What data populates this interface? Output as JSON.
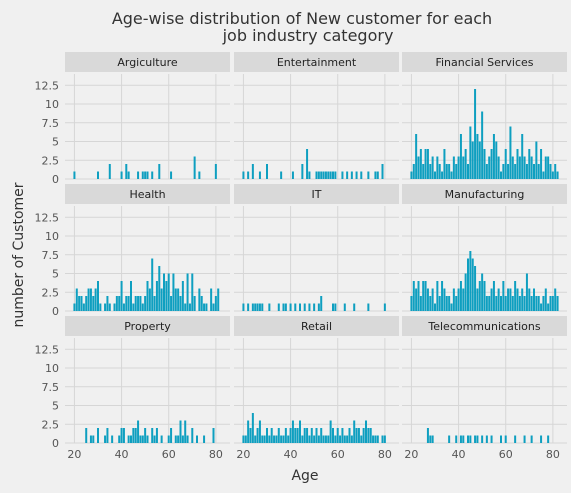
{
  "chart_data": {
    "type": "bar",
    "title_line1": "Age-wise distribution of New customer  for each",
    "title_line2": "job industry category",
    "xlabel": "Age",
    "ylabel": "number of Customer",
    "xlim": [
      16,
      86
    ],
    "ylim": [
      0,
      14
    ],
    "xticks": [
      20,
      40,
      60,
      80
    ],
    "yticks": [
      0,
      2.5,
      5,
      7.5,
      10,
      12.5
    ],
    "xtick_labels": [
      "20",
      "40",
      "60",
      "80"
    ],
    "ytick_labels": [
      "0",
      "2.5",
      "5",
      "7.5",
      "10",
      "12.5"
    ],
    "bar_color": "#0e9fc0",
    "grid": true,
    "panels": [
      {
        "name": "Argiculture",
        "x": [
          20,
          30,
          35,
          40,
          42,
          43,
          47,
          49,
          50,
          51,
          53,
          56,
          61,
          71,
          73,
          80
        ],
        "values": [
          1,
          1,
          2,
          1,
          2,
          1,
          1,
          1,
          1,
          1,
          1,
          2,
          1,
          3,
          1,
          2
        ]
      },
      {
        "name": "Entertainment",
        "x": [
          20,
          22,
          24,
          27,
          30,
          36,
          41,
          45,
          47,
          48,
          51,
          52,
          53,
          54,
          55,
          56,
          57,
          58,
          59,
          62,
          64,
          66,
          68,
          70,
          73,
          76,
          77,
          79
        ],
        "values": [
          1,
          1,
          2,
          1,
          2,
          1,
          1,
          2,
          4,
          1,
          1,
          1,
          1,
          1,
          1,
          1,
          1,
          1,
          1,
          1,
          1,
          1,
          1,
          1,
          1,
          1,
          1,
          2
        ]
      },
      {
        "name": "Financial Services",
        "x": [
          20,
          21,
          22,
          23,
          24,
          25,
          26,
          27,
          28,
          29,
          30,
          31,
          32,
          33,
          34,
          35,
          36,
          37,
          38,
          39,
          40,
          41,
          42,
          43,
          44,
          45,
          46,
          47,
          48,
          49,
          50,
          51,
          52,
          53,
          54,
          55,
          56,
          57,
          58,
          59,
          60,
          61,
          62,
          63,
          64,
          65,
          66,
          67,
          68,
          69,
          70,
          71,
          72,
          73,
          74,
          75,
          76,
          77,
          78,
          79,
          80,
          81,
          82
        ],
        "values": [
          1,
          2,
          6,
          3,
          4,
          2,
          4,
          4,
          2,
          3,
          1,
          3,
          2,
          1,
          4,
          2,
          2,
          1,
          3,
          2,
          3,
          6,
          3,
          4,
          2,
          7,
          5,
          12,
          6,
          5,
          9,
          4,
          2,
          3,
          4,
          6,
          5,
          3,
          1,
          2,
          4,
          2,
          7,
          3,
          2,
          4,
          3,
          6,
          3,
          2,
          4,
          3,
          2,
          5,
          2,
          4,
          1,
          3,
          3,
          2,
          1,
          2,
          1
        ]
      },
      {
        "name": "Health",
        "x": [
          20,
          21,
          22,
          23,
          24,
          25,
          26,
          27,
          28,
          29,
          30,
          31,
          33,
          34,
          35,
          37,
          38,
          39,
          40,
          41,
          42,
          43,
          44,
          45,
          46,
          47,
          48,
          49,
          50,
          51,
          52,
          53,
          54,
          55,
          56,
          57,
          58,
          59,
          60,
          61,
          62,
          63,
          64,
          65,
          66,
          67,
          68,
          69,
          70,
          71,
          73,
          74,
          75,
          76,
          78,
          79,
          80,
          81
        ],
        "values": [
          1,
          3,
          2,
          2,
          1,
          2,
          3,
          3,
          2,
          3,
          4,
          1,
          1,
          2,
          1,
          1,
          2,
          2,
          4,
          1,
          2,
          2,
          4,
          1,
          2,
          2,
          2,
          1,
          2,
          4,
          3,
          7,
          2,
          4,
          6,
          3,
          5,
          4,
          5,
          2,
          5,
          3,
          3,
          2,
          4,
          1,
          5,
          1,
          5,
          2,
          3,
          2,
          1,
          1,
          3,
          1,
          2,
          3
        ]
      },
      {
        "name": "IT",
        "x": [
          20,
          22,
          24,
          25,
          26,
          27,
          28,
          31,
          35,
          37,
          38,
          40,
          42,
          44,
          46,
          48,
          50,
          52,
          53,
          58,
          59,
          63,
          67,
          73,
          80
        ],
        "values": [
          1,
          1,
          1,
          1,
          1,
          1,
          1,
          1,
          1,
          1,
          1,
          1,
          1,
          1,
          1,
          1,
          1,
          1,
          2,
          1,
          1,
          1,
          1,
          1,
          1
        ]
      },
      {
        "name": "Manufacturing",
        "x": [
          20,
          21,
          22,
          23,
          24,
          25,
          26,
          27,
          28,
          29,
          30,
          31,
          32,
          33,
          34,
          35,
          36,
          37,
          38,
          39,
          40,
          41,
          42,
          43,
          44,
          45,
          46,
          47,
          48,
          49,
          50,
          51,
          52,
          53,
          54,
          55,
          56,
          57,
          58,
          59,
          60,
          61,
          62,
          63,
          64,
          65,
          66,
          67,
          68,
          69,
          70,
          71,
          72,
          73,
          74,
          75,
          76,
          77,
          78,
          79,
          80,
          81,
          82
        ],
        "values": [
          2,
          4,
          3,
          4,
          2,
          4,
          4,
          3,
          2,
          3,
          1,
          4,
          2,
          4,
          3,
          2,
          2,
          1,
          3,
          2,
          3,
          4,
          3,
          5,
          7,
          8,
          7,
          6,
          3,
          4,
          5,
          4,
          2,
          2,
          3,
          4,
          2,
          3,
          2,
          4,
          2,
          3,
          3,
          2,
          4,
          3,
          2,
          3,
          2,
          5,
          3,
          2,
          3,
          2,
          2,
          1,
          2,
          3,
          1,
          2,
          2,
          3,
          2
        ]
      },
      {
        "name": "Property",
        "x": [
          25,
          27,
          28,
          30,
          33,
          34,
          36,
          39,
          40,
          41,
          43,
          44,
          45,
          46,
          47,
          48,
          49,
          50,
          51,
          53,
          54,
          55,
          57,
          60,
          61,
          63,
          64,
          65,
          66,
          67,
          68,
          70,
          72,
          75,
          79
        ],
        "values": [
          2,
          1,
          1,
          2,
          1,
          2,
          1,
          1,
          2,
          2,
          1,
          1,
          2,
          2,
          3,
          1,
          1,
          2,
          1,
          2,
          1,
          2,
          1,
          1,
          2,
          1,
          1,
          3,
          1,
          3,
          1,
          2,
          1,
          1,
          2
        ]
      },
      {
        "name": "Retail",
        "x": [
          20,
          21,
          22,
          23,
          24,
          25,
          26,
          27,
          28,
          29,
          30,
          31,
          32,
          33,
          34,
          35,
          36,
          37,
          38,
          39,
          40,
          41,
          42,
          43,
          44,
          45,
          46,
          47,
          48,
          49,
          50,
          51,
          52,
          53,
          54,
          55,
          56,
          57,
          58,
          59,
          60,
          61,
          62,
          63,
          64,
          65,
          66,
          67,
          68,
          69,
          70,
          71,
          72,
          73,
          74,
          75,
          76,
          77,
          79,
          80
        ],
        "values": [
          1,
          1,
          3,
          2,
          4,
          1,
          2,
          3,
          1,
          1,
          2,
          1,
          2,
          1,
          1,
          2,
          1,
          1,
          2,
          1,
          2,
          3,
          2,
          2,
          3,
          1,
          2,
          2,
          1,
          2,
          1,
          2,
          1,
          2,
          1,
          1,
          1,
          3,
          2,
          1,
          2,
          1,
          2,
          1,
          1,
          2,
          1,
          3,
          2,
          2,
          1,
          2,
          3,
          2,
          2,
          1,
          1,
          1,
          1,
          1
        ]
      },
      {
        "name": "Telecommunications",
        "x": [
          27,
          28,
          29,
          36,
          39,
          41,
          42,
          44,
          45,
          47,
          48,
          50,
          52,
          54,
          58,
          60,
          64,
          68,
          71,
          75,
          78
        ],
        "values": [
          2,
          1,
          1,
          1,
          1,
          1,
          1,
          1,
          1,
          1,
          1,
          1,
          1,
          1,
          1,
          1,
          1,
          1,
          1,
          1,
          1
        ]
      }
    ]
  }
}
